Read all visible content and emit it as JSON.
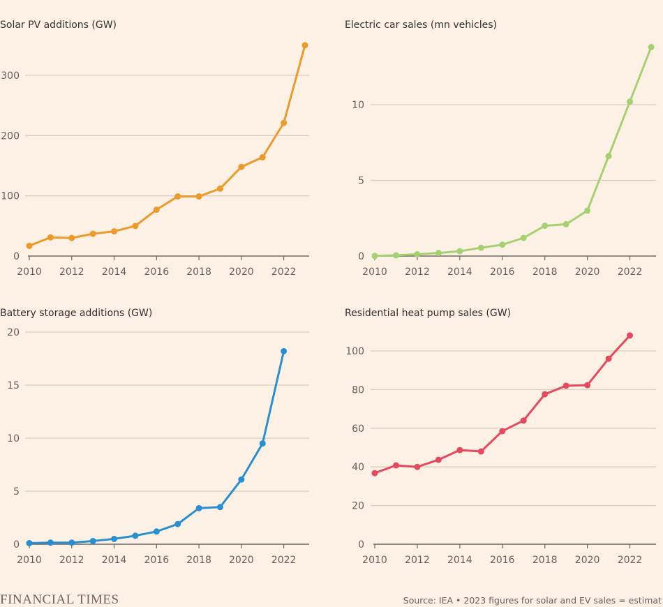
{
  "chart_data": [
    {
      "type": "line",
      "title": "Solar PV additions (GW)",
      "x": [
        2010,
        2011,
        2012,
        2013,
        2014,
        2015,
        2016,
        2017,
        2018,
        2019,
        2020,
        2021,
        2022,
        2023
      ],
      "values": [
        17,
        31,
        30,
        37,
        41,
        50,
        77,
        99,
        99,
        112,
        148,
        164,
        221,
        350
      ],
      "xticks": [
        2010,
        2012,
        2014,
        2016,
        2018,
        2020,
        2022
      ],
      "yticks": [
        0,
        100,
        200,
        300
      ],
      "xlim": [
        2010,
        2023
      ],
      "ylim": [
        0,
        350
      ],
      "color": "#eb9a2b",
      "grid": true
    },
    {
      "type": "line",
      "title": "Electric car sales (mn vehicles)",
      "x": [
        2010,
        2011,
        2012,
        2013,
        2014,
        2015,
        2016,
        2017,
        2018,
        2019,
        2020,
        2021,
        2022,
        2023
      ],
      "values": [
        0.01,
        0.05,
        0.12,
        0.2,
        0.32,
        0.55,
        0.75,
        1.2,
        2.0,
        2.1,
        3.0,
        6.6,
        10.2,
        13.8
      ],
      "xticks": [
        2010,
        2012,
        2014,
        2016,
        2018,
        2020,
        2022
      ],
      "yticks": [
        0,
        5,
        10
      ],
      "xlim": [
        2010,
        2023
      ],
      "ylim": [
        0,
        14
      ],
      "color": "#a6d170",
      "grid": true
    },
    {
      "type": "line",
      "title": "Battery storage additions (GW)",
      "x": [
        2010,
        2011,
        2012,
        2013,
        2014,
        2015,
        2016,
        2017,
        2018,
        2019,
        2020,
        2021,
        2022
      ],
      "values": [
        0.1,
        0.15,
        0.15,
        0.3,
        0.5,
        0.8,
        1.2,
        1.9,
        3.4,
        3.5,
        6.1,
        9.5,
        18.2
      ],
      "xticks": [
        2010,
        2012,
        2014,
        2016,
        2018,
        2020,
        2022
      ],
      "yticks": [
        0,
        5,
        10,
        15,
        20
      ],
      "xlim": [
        2010,
        2023
      ],
      "ylim": [
        0,
        20
      ],
      "color": "#2a8fd0",
      "grid": true
    },
    {
      "type": "line",
      "title": "Residential heat pump sales (GW)",
      "x": [
        2010,
        2011,
        2012,
        2013,
        2014,
        2015,
        2016,
        2017,
        2018,
        2019,
        2020,
        2021,
        2022
      ],
      "values": [
        36.8,
        40.8,
        40,
        43.7,
        48.7,
        48,
        58.5,
        64,
        77.6,
        82,
        82.3,
        96,
        108
      ],
      "xticks": [
        2010,
        2012,
        2014,
        2016,
        2018,
        2020,
        2022
      ],
      "yticks": [
        0,
        20,
        40,
        60,
        80,
        100
      ],
      "xlim": [
        2010,
        2023
      ],
      "ylim": [
        0,
        110
      ],
      "color": "#e5495e",
      "grid": true
    }
  ],
  "footer": {
    "brand": "FINANCIAL TIMES",
    "source": "Source: IEA • 2023 figures for solar and EV sales = estimat"
  }
}
